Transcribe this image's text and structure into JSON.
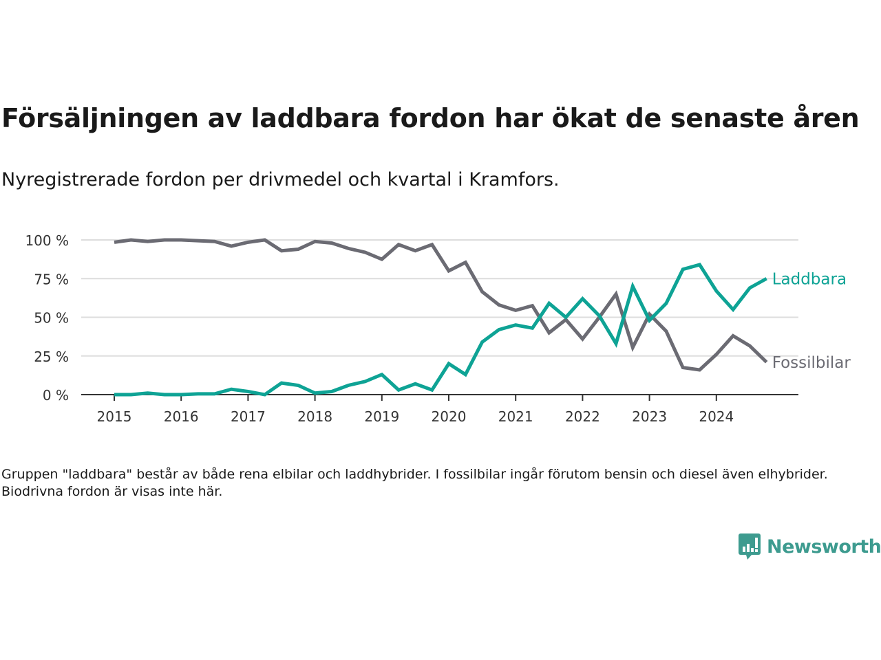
{
  "header": {
    "title": "Försäljningen av laddbara fordon har ökat de senaste åren",
    "subtitle": "Nyregistrerade fordon per drivmedel och kvartal i Kramfors."
  },
  "footer": {
    "note": "Gruppen \"laddbara\" består av både rena elbilar och laddhybrider. I fossilbilar ingår förutom bensin och diesel även elhybrider. Biodrivna fordon är visas inte här.",
    "brand": "Newsworthy"
  },
  "colors": {
    "laddbara": "#0ea395",
    "fossil": "#6b6b73",
    "grid": "#dddddd",
    "axis": "#333333",
    "brand": "#3d9b8f"
  },
  "chart_data": {
    "type": "line",
    "title": "Försäljningen av laddbara fordon har ökat de senaste åren",
    "subtitle": "Nyregistrerade fordon per drivmedel och kvartal i Kramfors.",
    "xlabel": "",
    "ylabel": "",
    "ylim": [
      0,
      100
    ],
    "y_ticks": [
      0,
      25,
      50,
      75,
      100
    ],
    "y_tick_labels": [
      "0 %",
      "25 %",
      "50 %",
      "75 %",
      "100 %"
    ],
    "x_ticks": [
      "2015",
      "2016",
      "2017",
      "2018",
      "2019",
      "2020",
      "2021",
      "2022",
      "2023",
      "2024"
    ],
    "x_start_year": 2015,
    "points_per_year": 4,
    "grid": true,
    "legend": "direct-labels-right",
    "series": [
      {
        "name": "Laddbara",
        "key": "laddbara",
        "values": [
          0,
          0,
          1,
          0,
          0,
          0.5,
          0.5,
          3.5,
          2,
          0,
          7.5,
          6,
          1,
          2,
          6,
          8.5,
          13,
          3,
          7,
          3,
          20,
          13,
          34,
          42,
          45,
          43,
          59,
          50,
          62,
          51,
          33,
          70,
          48,
          59,
          81,
          84,
          67,
          55,
          69,
          75
        ]
      },
      {
        "name": "Fossilbilar",
        "key": "fossil",
        "values": [
          98.5,
          100,
          99,
          100,
          100,
          99.5,
          99,
          96,
          98.5,
          100,
          93,
          94,
          99,
          98,
          94.5,
          92,
          87.5,
          97,
          93,
          97,
          80,
          85.5,
          66.5,
          58,
          54.5,
          57.5,
          40,
          48.5,
          36,
          50,
          65,
          30.5,
          52,
          41,
          17.5,
          16,
          26,
          38,
          31.5,
          21
        ]
      }
    ]
  }
}
